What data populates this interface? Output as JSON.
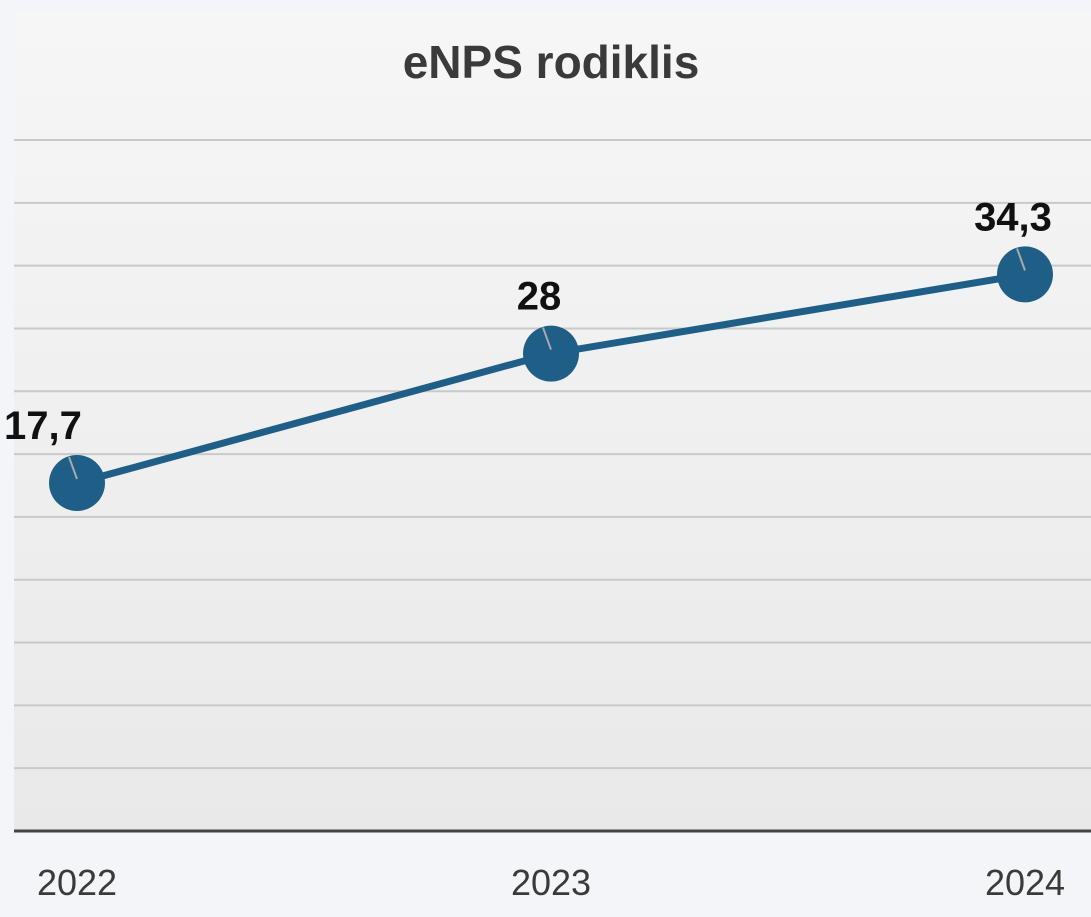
{
  "chart_data": {
    "type": "line",
    "title": "eNPS rodiklis",
    "xlabel": "",
    "ylabel": "",
    "categories": [
      "2022",
      "2023",
      "2024"
    ],
    "series": [
      {
        "values": [
          17.7,
          28,
          34.3
        ],
        "labels": [
          "17,7",
          "28",
          "34,3"
        ],
        "color": "#1f5f87"
      }
    ],
    "ylim": [
      -10,
      45
    ],
    "grid": true,
    "legend": "none"
  },
  "colors": {
    "line": "#1f5f87",
    "gridline": "#c9c9c9",
    "axis": "#444444",
    "background": "#f4f5f9",
    "plot_background": "#efefef"
  }
}
